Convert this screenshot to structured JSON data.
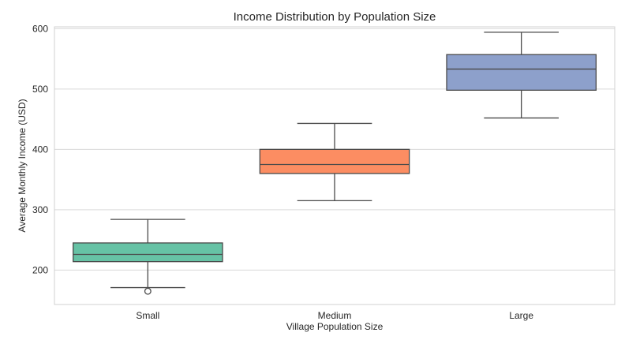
{
  "chart_data": {
    "type": "box",
    "title": "Income Distribution by Population Size",
    "xlabel": "Village Population Size",
    "ylabel": "Average Monthly Income (USD)",
    "ylim": [
      143,
      603
    ],
    "yticks": [
      200,
      300,
      400,
      500,
      600
    ],
    "grid": "horizontal",
    "categories": [
      "Small",
      "Medium",
      "Large"
    ],
    "boxes": [
      {
        "category": "Small",
        "whisker_low": 171,
        "q1": 214,
        "median": 226,
        "q3": 245,
        "whisker_high": 284,
        "outliers": [
          165
        ],
        "color": "#66c2a5"
      },
      {
        "category": "Medium",
        "whisker_low": 315,
        "q1": 360,
        "median": 375,
        "q3": 400,
        "whisker_high": 443,
        "outliers": [],
        "color": "#fc8d62"
      },
      {
        "category": "Large",
        "whisker_low": 452,
        "q1": 498,
        "median": 533,
        "q3": 557,
        "whisker_high": 594,
        "outliers": [],
        "color": "#8da0cb"
      }
    ]
  }
}
